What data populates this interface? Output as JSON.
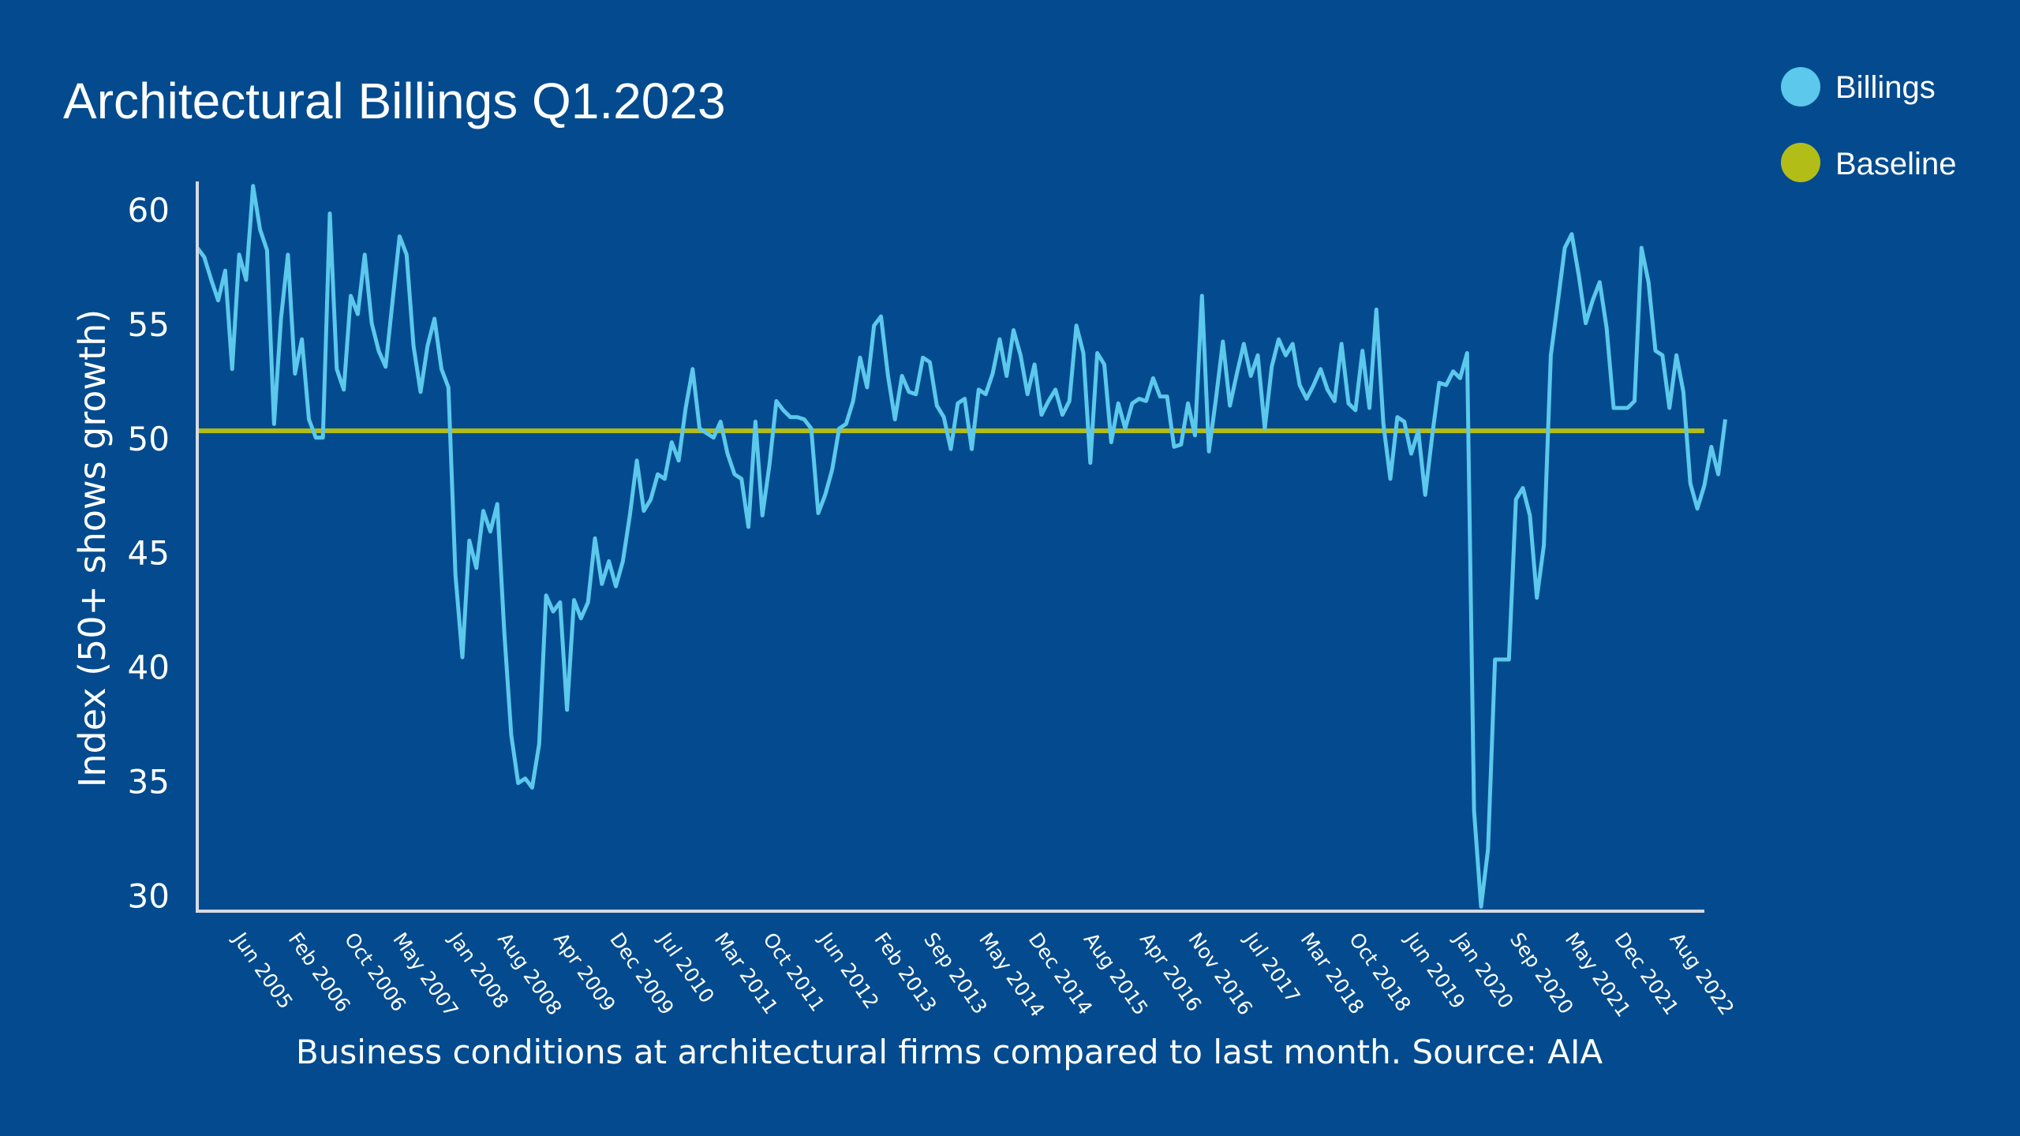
{
  "colors": {
    "background": "#034b8e",
    "billings": "#5bc8ec",
    "baseline": "#b3bd17",
    "axis": "#d6dbe4",
    "text": "#ffffff"
  },
  "chart_data": {
    "type": "line",
    "title": "Architectural Billings Q1.2023",
    "xlabel": "Business conditions at architectural firms compared to last month. Source: AIA",
    "ylabel": "Index (50+ shows growth)",
    "ylim": [
      29.3,
      61.2
    ],
    "yticks": [
      30,
      35,
      40,
      45,
      50,
      55,
      60
    ],
    "xlim": [
      2005.0,
      2023.0
    ],
    "xtick_positions": [
      2005.42,
      2006.08,
      2006.75,
      2007.33,
      2008.0,
      2008.58,
      2009.25,
      2009.92,
      2010.5,
      2011.17,
      2011.75,
      2012.42,
      2013.08,
      2013.67,
      2014.33,
      2014.92,
      2015.58,
      2016.25,
      2016.83,
      2017.5,
      2018.17,
      2018.75,
      2019.42,
      2020.0,
      2020.67,
      2021.33,
      2021.92,
      2022.58
    ],
    "xtick_labels": [
      "Jun 2005",
      "Feb 2006",
      "Oct 2006",
      "May 2007",
      "Jan 2008",
      "Aug 2008",
      "Apr 2009",
      "Dec 2009",
      "Jul 2010",
      "Mar 2011",
      "Oct 2011",
      "Jun 2012",
      "Feb 2013",
      "Sep 2013",
      "May 2014",
      "Dec 2014",
      "Aug 2015",
      "Apr 2016",
      "Nov 2016",
      "Jul 2017",
      "Mar 2018",
      "Oct 2018",
      "Jun 2019",
      "Jan 2020",
      "Sep 2020",
      "May 2021",
      "Dec 2021",
      "Aug 2022"
    ],
    "legend": [
      {
        "name": "Billings",
        "color": "#5bc8ec"
      },
      {
        "name": "Baseline",
        "color": "#b3bd17"
      }
    ],
    "legend_position": "top-right",
    "series": [
      {
        "name": "Baseline",
        "x": [
          2005.0,
          2023.0
        ],
        "values": [
          50.3,
          50.3
        ]
      },
      {
        "name": "Billings",
        "x_start": 2005.0,
        "x_step": 0.08333,
        "values": [
          58.3,
          57.9,
          56.9,
          56.0,
          57.3,
          53.0,
          58.0,
          56.9,
          61.0,
          59.1,
          58.2,
          50.6,
          55.2,
          58.0,
          52.8,
          54.3,
          50.8,
          50.0,
          50.0,
          59.8,
          53.0,
          52.1,
          56.2,
          55.4,
          58.0,
          55.0,
          53.8,
          53.1,
          56.0,
          58.8,
          58.0,
          54.0,
          52.0,
          54.0,
          55.2,
          53.0,
          52.2,
          44.0,
          40.4,
          45.5,
          44.3,
          46.8,
          45.9,
          47.1,
          41.5,
          37.0,
          34.9,
          35.1,
          34.7,
          36.6,
          43.1,
          42.4,
          42.8,
          38.1,
          42.9,
          42.1,
          42.8,
          45.6,
          43.6,
          44.6,
          43.5,
          44.6,
          46.6,
          49.0,
          46.8,
          47.3,
          48.4,
          48.2,
          49.8,
          49.0,
          51.3,
          53.0,
          50.4,
          50.2,
          50.0,
          50.7,
          49.3,
          48.4,
          48.2,
          46.1,
          50.7,
          46.6,
          48.8,
          51.6,
          51.2,
          50.9,
          50.9,
          50.8,
          50.4,
          46.7,
          47.5,
          48.6,
          50.4,
          50.6,
          51.6,
          53.5,
          52.2,
          54.9,
          55.3,
          52.7,
          50.8,
          52.7,
          52.0,
          51.9,
          53.5,
          53.3,
          51.4,
          50.9,
          49.5,
          51.5,
          51.7,
          49.5,
          52.1,
          51.9,
          52.8,
          54.3,
          52.7,
          54.7,
          53.6,
          51.9,
          53.2,
          51.0,
          51.6,
          52.1,
          51.0,
          51.6,
          54.9,
          53.7,
          48.9,
          53.7,
          53.2,
          49.8,
          51.5,
          50.4,
          51.5,
          51.7,
          51.6,
          52.6,
          51.8,
          51.8,
          49.6,
          49.7,
          51.5,
          50.1,
          56.2,
          49.4,
          51.7,
          54.2,
          51.4,
          52.8,
          54.1,
          52.7,
          53.6,
          50.4,
          53.1,
          54.3,
          53.6,
          54.1,
          52.3,
          51.7,
          52.3,
          53.0,
          52.1,
          51.6,
          54.1,
          51.5,
          51.2,
          53.8,
          51.3,
          55.6,
          50.6,
          48.2,
          50.9,
          50.7,
          49.3,
          50.3,
          47.5,
          50.1,
          52.4,
          52.3,
          52.9,
          52.6,
          53.7,
          33.7,
          29.5,
          32.0,
          40.3,
          40.3,
          40.3,
          47.3,
          47.8,
          46.6,
          43.0,
          45.3,
          53.6,
          55.9,
          58.3,
          58.9,
          57.1,
          55.0,
          56.0,
          56.8,
          54.8,
          51.3,
          51.3,
          51.3,
          51.6,
          58.3,
          56.8,
          53.8,
          53.6,
          51.3,
          53.6,
          52.0,
          48.0,
          46.9,
          47.9,
          49.6,
          48.4,
          50.8
        ]
      }
    ]
  }
}
